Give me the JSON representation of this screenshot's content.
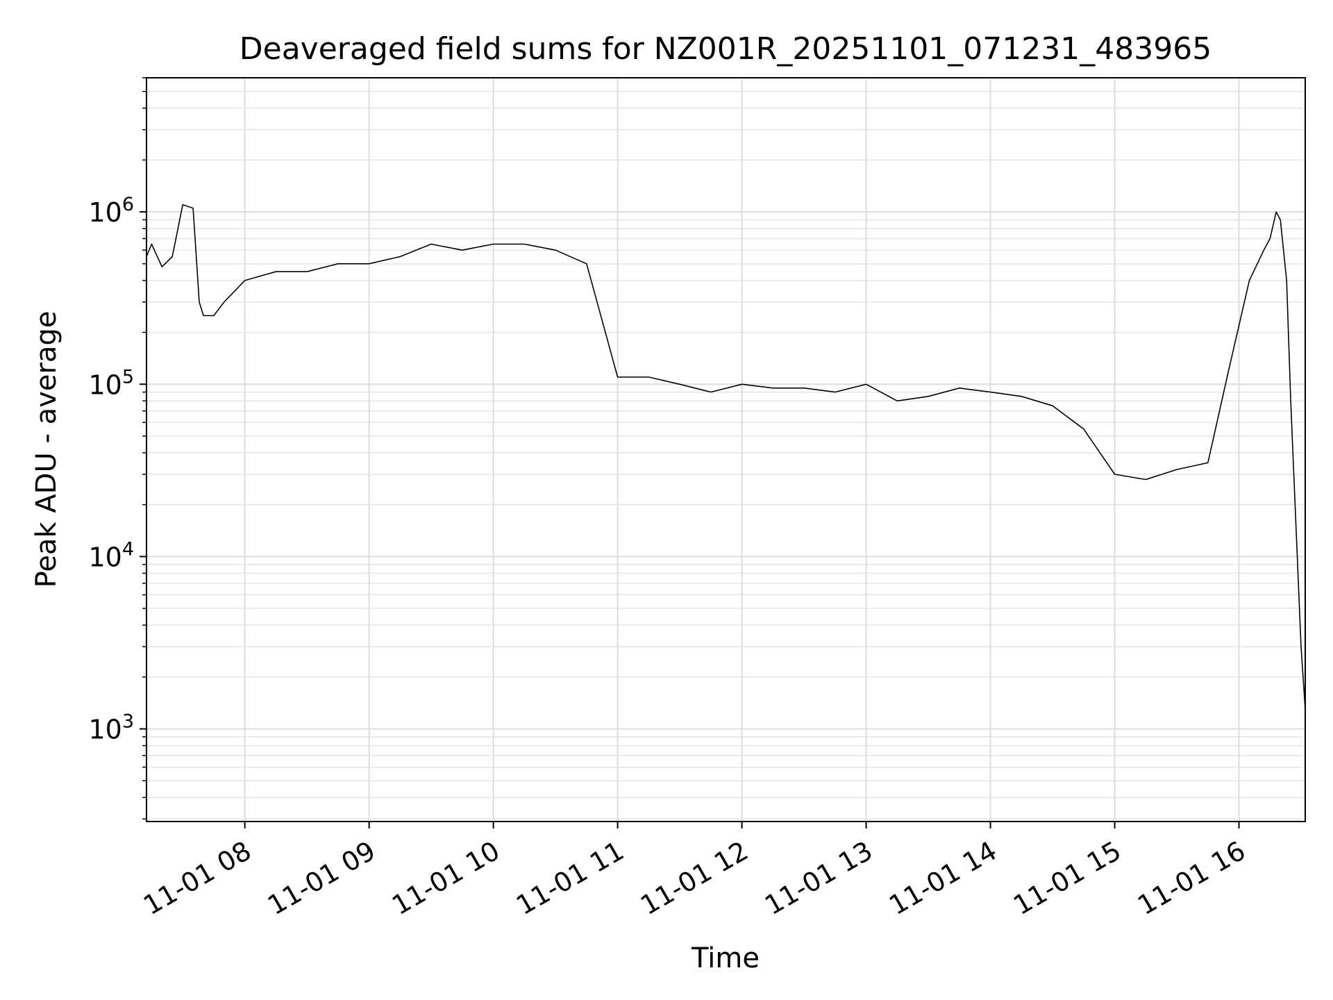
{
  "chart_data": {
    "type": "line",
    "title": "Deaveraged field sums for NZ001R_20251101_071231_483965",
    "xlabel": "Time",
    "ylabel": "Peak ADU - average",
    "yscale": "log",
    "grid": true,
    "legend": "none",
    "line_color": "#000000",
    "x_tick_labels": [
      "11-01 08",
      "11-01 09",
      "11-01 10",
      "11-01 11",
      "11-01 12",
      "11-01 13",
      "11-01 14",
      "11-01 15",
      "11-01 16"
    ],
    "x_ticks": [
      "2025-11-01T08:00",
      "2025-11-01T09:00",
      "2025-11-01T10:00",
      "2025-11-01T11:00",
      "2025-11-01T12:00",
      "2025-11-01T13:00",
      "2025-11-01T14:00",
      "2025-11-01T15:00",
      "2025-11-01T16:00"
    ],
    "xlim": [
      "2025-11-01T07:12:31",
      "2025-11-01T16:32:00"
    ],
    "y_tick_labels": [
      {
        "base": "10",
        "exp": "3",
        "value": 1000
      },
      {
        "base": "10",
        "exp": "4",
        "value": 10000
      },
      {
        "base": "10",
        "exp": "5",
        "value": 100000
      },
      {
        "base": "10",
        "exp": "6",
        "value": 1000000
      }
    ],
    "ylim": [
      290,
      6000000
    ],
    "series": [
      {
        "x": [
          "2025-11-01T07:12:31",
          "2025-11-01T07:15",
          "2025-11-01T07:20",
          "2025-11-01T07:25",
          "2025-11-01T07:30",
          "2025-11-01T07:35",
          "2025-11-01T07:38",
          "2025-11-01T07:40",
          "2025-11-01T07:45",
          "2025-11-01T07:50",
          "2025-11-01T08:00",
          "2025-11-01T08:15",
          "2025-11-01T08:30",
          "2025-11-01T08:45",
          "2025-11-01T09:00",
          "2025-11-01T09:15",
          "2025-11-01T09:30",
          "2025-11-01T09:45",
          "2025-11-01T10:00",
          "2025-11-01T10:15",
          "2025-11-01T10:30",
          "2025-11-01T10:45",
          "2025-11-01T11:00",
          "2025-11-01T11:15",
          "2025-11-01T11:30",
          "2025-11-01T11:45",
          "2025-11-01T12:00",
          "2025-11-01T12:15",
          "2025-11-01T12:30",
          "2025-11-01T12:45",
          "2025-11-01T13:00",
          "2025-11-01T13:15",
          "2025-11-01T13:30",
          "2025-11-01T13:45",
          "2025-11-01T14:00",
          "2025-11-01T14:15",
          "2025-11-01T14:30",
          "2025-11-01T14:45",
          "2025-11-01T15:00",
          "2025-11-01T15:15",
          "2025-11-01T15:30",
          "2025-11-01T15:45",
          "2025-11-01T15:55",
          "2025-11-01T16:05",
          "2025-11-01T16:12",
          "2025-11-01T16:15",
          "2025-11-01T16:18",
          "2025-11-01T16:20",
          "2025-11-01T16:23",
          "2025-11-01T16:25",
          "2025-11-01T16:30",
          "2025-11-01T16:32"
        ],
        "y": [
          550000,
          650000,
          480000,
          550000,
          1100000,
          1050000,
          300000,
          250000,
          250000,
          300000,
          400000,
          450000,
          450000,
          500000,
          500000,
          550000,
          650000,
          600000,
          650000,
          650000,
          600000,
          500000,
          110000,
          110000,
          100000,
          90000,
          100000,
          95000,
          95000,
          90000,
          100000,
          80000,
          85000,
          95000,
          90000,
          85000,
          75000,
          55000,
          30000,
          28000,
          32000,
          35000,
          120000,
          400000,
          600000,
          700000,
          1000000,
          900000,
          400000,
          80000,
          3000,
          1300
        ]
      }
    ]
  }
}
